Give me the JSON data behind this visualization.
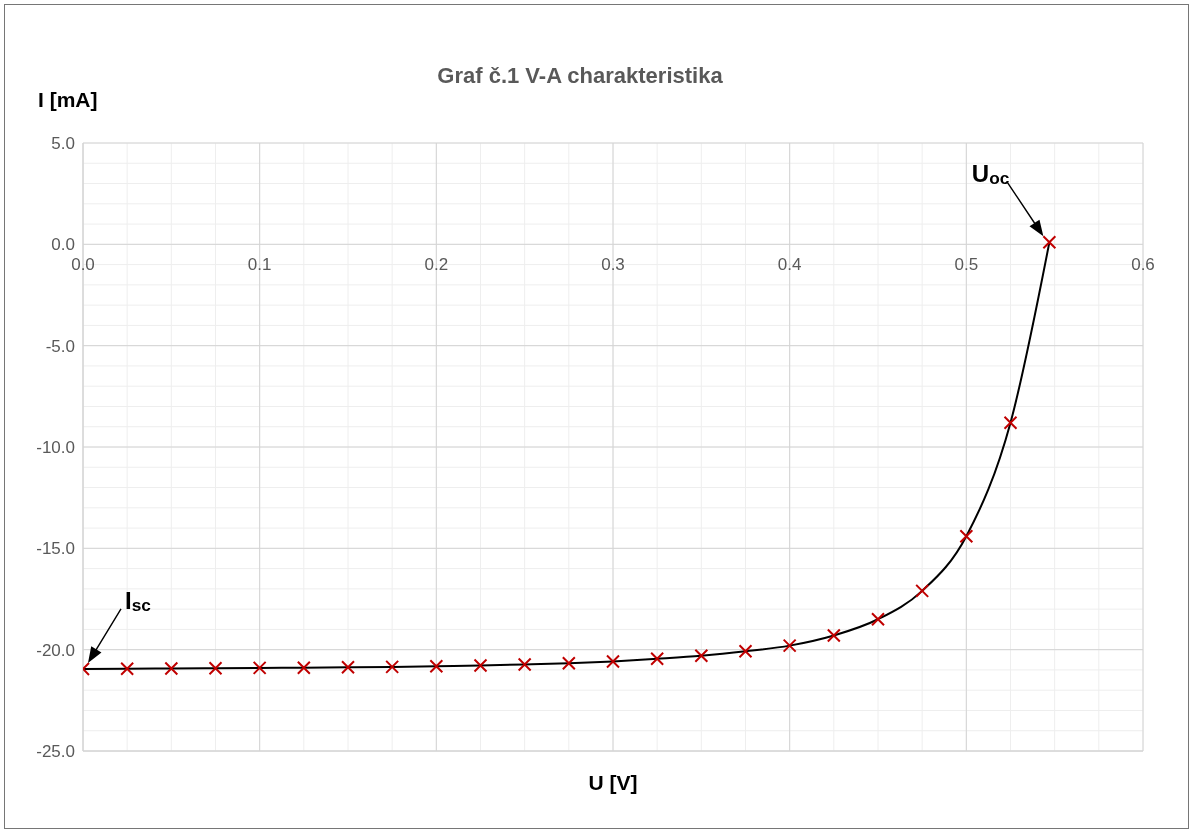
{
  "chart_data": {
    "type": "line",
    "title": "Graf č.1 V-A charakteristika",
    "xlabel": "U [V]",
    "ylabel": "I [mA]",
    "x": [
      0,
      0.025,
      0.05,
      0.075,
      0.1,
      0.125,
      0.15,
      0.175,
      0.2,
      0.225,
      0.25,
      0.275,
      0.3,
      0.325,
      0.35,
      0.375,
      0.4,
      0.425,
      0.45,
      0.475,
      0.5,
      0.525,
      0.547
    ],
    "series": [
      {
        "color": "#000000",
        "marker": "none",
        "values": [
          -20.95,
          -20.94,
          -20.93,
          -20.92,
          -20.9,
          -20.89,
          -20.87,
          -20.85,
          -20.82,
          -20.78,
          -20.73,
          -20.67,
          -20.58,
          -20.45,
          -20.3,
          -20.08,
          -19.8,
          -19.3,
          -18.5,
          -17.1,
          -14.4,
          -8.8,
          0.1
        ]
      },
      {
        "type": "scatter",
        "color": "#c00000",
        "marker": "cross",
        "values": [
          -20.95,
          -20.94,
          -20.93,
          -20.92,
          -20.9,
          -20.89,
          -20.87,
          -20.85,
          -20.82,
          -20.78,
          -20.73,
          -20.67,
          -20.58,
          -20.45,
          -20.3,
          -20.08,
          -19.8,
          -19.3,
          -18.5,
          -17.1,
          -14.4,
          -8.8,
          0.1
        ]
      }
    ],
    "xlim": [
      0,
      0.6
    ],
    "xticks": [
      {
        "value": 0,
        "label": "0.0"
      },
      {
        "value": 0.025,
        "label": null
      },
      {
        "value": 0.05,
        "label": null
      },
      {
        "value": 0.075,
        "label": null
      },
      0.1,
      {
        "value": 0.125,
        "label": null
      },
      {
        "value": 0.15,
        "label": null
      },
      {
        "value": 0.175,
        "label": null
      },
      0.2,
      {
        "value": 0.225,
        "label": null
      },
      {
        "value": 0.25,
        "label": null
      },
      {
        "value": 0.275,
        "label": null
      },
      0.3,
      {
        "value": 0.325,
        "label": null
      },
      {
        "value": 0.35,
        "label": null
      },
      {
        "value": 0.375,
        "label": null
      },
      0.4,
      {
        "value": 0.425,
        "label": null
      },
      {
        "value": 0.45,
        "label": null
      },
      {
        "value": 0.475,
        "label": null
      },
      0.5,
      {
        "value": 0.525,
        "label": null
      },
      {
        "value": 0.55,
        "label": null
      },
      {
        "value": 0.575,
        "label": null
      },
      0.6
    ],
    "ylim": [
      -25,
      5
    ],
    "yticks": [
      {
        "value": -25,
        "label": "-25.0"
      },
      {
        "value": -24,
        "label": null
      },
      {
        "value": -23,
        "label": null
      },
      {
        "value": -22,
        "label": null
      },
      {
        "value": -21,
        "label": null
      },
      {
        "value": -20,
        "label": "-20.0"
      },
      {
        "value": -19,
        "label": null
      },
      {
        "value": -18,
        "label": null
      },
      {
        "value": -17,
        "label": null
      },
      {
        "value": -16,
        "label": null
      },
      {
        "value": -15,
        "label": "-15.0"
      },
      {
        "value": -14,
        "label": null
      },
      {
        "value": -13,
        "label": null
      },
      {
        "value": -12,
        "label": null
      },
      {
        "value": -11,
        "label": null
      },
      {
        "value": -10,
        "label": "-10.0"
      },
      {
        "value": -9,
        "label": null
      },
      {
        "value": -8,
        "label": null
      },
      {
        "value": -7,
        "label": null
      },
      {
        "value": -6,
        "label": null
      },
      {
        "value": -5,
        "label": "-5.0"
      },
      {
        "value": -4,
        "label": null
      },
      {
        "value": -3,
        "label": null
      },
      {
        "value": -2,
        "label": null
      },
      {
        "value": -1,
        "label": null
      },
      {
        "value": 0,
        "label": "0.0"
      },
      {
        "value": 1,
        "label": null
      },
      {
        "value": 2,
        "label": null
      },
      {
        "value": 3,
        "label": null
      },
      {
        "value": 4,
        "label": null
      },
      {
        "value": 5,
        "label": "5.0"
      }
    ],
    "grid": true,
    "annotations": [
      {
        "text": "I$_{sc}$",
        "x": 0,
        "y": -20.95
      },
      {
        "text": "U$_{oc}$",
        "x": 0.547,
        "y": 0.1
      }
    ]
  }
}
